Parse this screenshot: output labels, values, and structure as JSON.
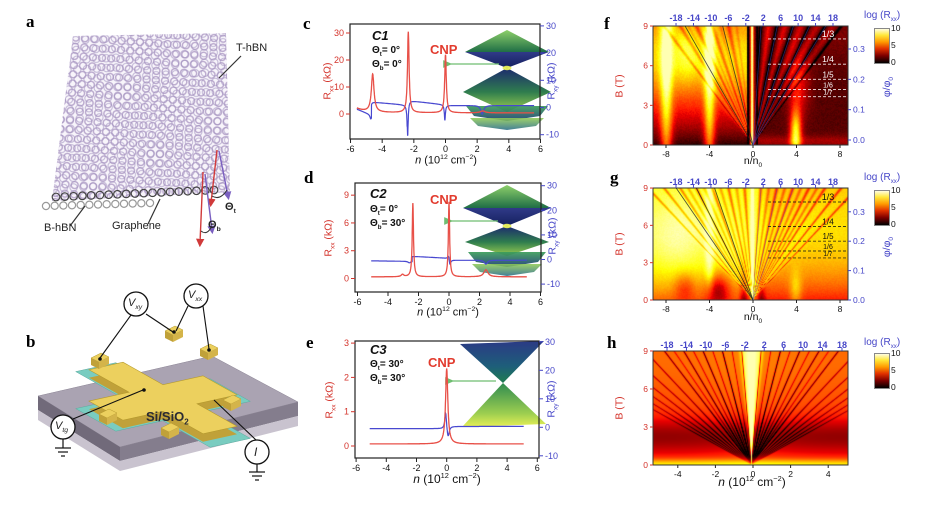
{
  "panels": {
    "a": "a",
    "b": "b",
    "c": "c",
    "d": "d",
    "e": "e",
    "f": "f",
    "g": "g",
    "h": "h"
  },
  "panel_a": {
    "t_hbn": "T-hBN",
    "b_hbn": "B-hBN",
    "graphene": "Graphene",
    "theta": "Θ",
    "theta_t_sub": "t",
    "theta_b_sub": "b"
  },
  "panel_b": {
    "v": "V",
    "vxy_sub": "xy",
    "vxx_sub": "xx",
    "vtg_sub": "tg",
    "current": "I",
    "substrate": "Si/SiO",
    "substrate_sub": "2"
  },
  "chart_data": [
    {
      "id": "c",
      "type": "line",
      "title": "C1",
      "annotations": {
        "theta": "Θ",
        "t_sub": "t",
        "t_val": "= 0°",
        "b_sub": "b",
        "b_val": "= 0°",
        "cnp": "CNP"
      },
      "xlabel": {
        "n": "n",
        "p1": " (10",
        "sup": "12",
        "p2": " cm",
        "sup2": "−2",
        "p3": ")"
      },
      "ylabel_left": {
        "base": "R",
        "sub": "xx",
        "rest": " (kΩ)"
      },
      "ylabel_right": {
        "base": "R",
        "sub": "xy",
        "rest": " (kΩ)"
      },
      "x_ticks": [
        -6,
        -4,
        -2,
        0,
        2,
        4,
        6
      ],
      "y_left_ticks": [
        0,
        10,
        20,
        30
      ],
      "y_right_ticks": [
        -10,
        0,
        10,
        20,
        30
      ],
      "colors": {
        "rxx": "#e85048",
        "rxy": "#4848d0"
      },
      "x_range": [
        -5.6,
        5.6
      ],
      "rxx": {
        "baseline": 0.4,
        "peaks": [
          {
            "x": -6.2,
            "h": 3.5,
            "w": 0.6
          },
          {
            "x": -4.6,
            "h": 14,
            "w": 0.1
          },
          {
            "x": -2.35,
            "h": 30,
            "w": 0.06
          },
          {
            "x": 0,
            "h": 21.5,
            "w": 0.06
          },
          {
            "x": 2.35,
            "h": 0.7,
            "w": 0.18
          }
        ]
      },
      "rxy": {
        "plateaus": [
          [
            -5.6,
            -4.68,
            -0.6,
            -2.8
          ],
          [
            -4.68,
            -2.42,
            2.0,
            0.9
          ],
          [
            -2.42,
            -0.06,
            2.6,
            1.0
          ],
          [
            -0.06,
            5.6,
            0.75,
            0.7
          ]
        ],
        "dips": [
          {
            "x": -4.72,
            "d": -1.5,
            "w": 0.06
          },
          {
            "x": -2.39,
            "d": -13,
            "w": 0.04
          },
          {
            "x": -0.04,
            "d": -5.5,
            "w": 0.04
          },
          {
            "x": 2.32,
            "d": -3.2,
            "w": 0.1
          }
        ]
      }
    },
    {
      "id": "d",
      "type": "line",
      "title": "C2",
      "annotations": {
        "theta": "Θ",
        "t_sub": "t",
        "t_val": "= 0°",
        "b_sub": "b",
        "b_val": "= 30°",
        "cnp": "CNP"
      },
      "xlabel": {
        "n": "n",
        "p1": " (10",
        "sup": "12",
        "p2": " cm",
        "sup2": "−2",
        "p3": ")"
      },
      "ylabel_left": {
        "base": "R",
        "sub": "xx",
        "rest": " (kΩ)"
      },
      "ylabel_right": {
        "base": "R",
        "sub": "xy",
        "rest": " (kΩ)"
      },
      "x_ticks": [
        -6,
        -4,
        -2,
        0,
        2,
        4,
        6
      ],
      "y_left_ticks": [
        0,
        3,
        6,
        9
      ],
      "y_right_ticks": [
        -10,
        0,
        10,
        20,
        30
      ],
      "colors": {
        "rxx": "#e85048",
        "rxy": "#4848d0"
      },
      "x_range": [
        -5.1,
        5.1
      ],
      "rxx": {
        "baseline": 0.18,
        "peaks": [
          {
            "x": -3.05,
            "h": 0.25,
            "w": 0.1
          },
          {
            "x": -2.37,
            "h": 8.0,
            "w": 0.05
          },
          {
            "x": 0,
            "h": 8.1,
            "w": 0.05
          },
          {
            "x": 2.42,
            "h": 0.75,
            "w": 0.16
          }
        ]
      },
      "rxy": {
        "plateaus": [
          [
            -5.1,
            -2.42,
            -0.55,
            -0.75
          ],
          [
            -2.42,
            -0.05,
            1.3,
            0.5
          ],
          [
            -0.05,
            5.1,
            -0.3,
            -0.3
          ]
        ],
        "dips": [
          {
            "x": -2.6,
            "d": -0.6,
            "w": 0.1
          },
          {
            "x": -0.02,
            "d": 2.2,
            "w": 0.05
          },
          {
            "x": 0.06,
            "d": -2.2,
            "w": 0.06
          },
          {
            "x": 2.42,
            "d": -1.6,
            "w": 0.12
          }
        ]
      }
    },
    {
      "id": "e",
      "type": "line",
      "title": "C3",
      "annotations": {
        "theta": "Θ",
        "t_sub": "t",
        "t_val": "= 30°",
        "b_sub": "b",
        "b_val": "= 30°",
        "cnp": "CNP"
      },
      "xlabel": {
        "n": "n",
        "p1": " (10",
        "sup": "12",
        "p2": " cm",
        "sup2": "−2",
        "p3": ")"
      },
      "ylabel_left": {
        "base": "R",
        "sub": "xx",
        "rest": " (kΩ)"
      },
      "ylabel_right": {
        "base": "R",
        "sub": "xy",
        "rest": " (kΩ)"
      },
      "x_ticks": [
        -6,
        -4,
        -2,
        0,
        2,
        4,
        6
      ],
      "y_left_ticks": [
        0,
        1,
        2,
        3
      ],
      "y_right_ticks": [
        -10,
        0,
        10,
        20,
        30
      ],
      "colors": {
        "rxx": "#e85048",
        "rxy": "#4848d0"
      },
      "x_range": [
        -5.1,
        5.1
      ],
      "rxx": {
        "baseline": 0.06,
        "peaks": [
          {
            "x": 0,
            "h": 2.2,
            "w": 0.09
          }
        ]
      },
      "rxy": {
        "plateaus": [
          [
            -5.1,
            -0.1,
            -0.45,
            -0.45
          ],
          [
            -0.1,
            0.1,
            -0.45,
            0.3
          ],
          [
            0.1,
            5.1,
            0.3,
            0.3
          ]
        ],
        "dips": [
          {
            "x": -0.07,
            "d": 6.3,
            "w": 0.07
          },
          {
            "x": 0.09,
            "d": -4.2,
            "w": 0.09
          }
        ]
      }
    },
    {
      "id": "f",
      "type": "heatmap",
      "xlabel": {
        "base": "n/n",
        "sub": "0"
      },
      "ylabel": "B (T)",
      "right_label": {
        "base": "φ/φ",
        "sub": "0"
      },
      "x_ticks": [
        -8,
        -4,
        0,
        4,
        8
      ],
      "top_ticks": [
        -18,
        -14,
        -10,
        -6,
        -2,
        2,
        6,
        10,
        14,
        18
      ],
      "y_ticks": [
        0,
        3,
        6,
        9
      ],
      "phi_ticks": [
        "0.0",
        "0.1",
        "0.2",
        "0.3"
      ],
      "fractions": [
        "1/3",
        "1/4",
        "1/5",
        "1/6",
        "1/7"
      ],
      "fraction_values": [
        0.3333,
        0.25,
        0.2,
        0.1667,
        0.1429
      ],
      "colorbar": {
        "p1": "log (R",
        "sub": "xx",
        "p2": ")",
        "ticks": [
          "10",
          "5",
          "0"
        ]
      }
    },
    {
      "id": "g",
      "type": "heatmap",
      "xlabel": {
        "base": "n/n",
        "sub": "0"
      },
      "ylabel": "B (T)",
      "right_label": {
        "base": "φ/φ",
        "sub": "0"
      },
      "x_ticks": [
        -8,
        -4,
        0,
        4,
        8
      ],
      "top_ticks": [
        -18,
        -14,
        -10,
        -6,
        -2,
        2,
        6,
        10,
        14,
        18
      ],
      "y_ticks": [
        0,
        3,
        6,
        9
      ],
      "phi_ticks": [
        "0.0",
        "0.1",
        "0.2",
        "0.3"
      ],
      "fractions": [
        "1/3",
        "1/4",
        "1/5",
        "1/6",
        "1/7"
      ],
      "fraction_values": [
        0.3333,
        0.25,
        0.2,
        0.1667,
        0.1429
      ],
      "colorbar": {
        "p1": "log (R",
        "sub": "xx",
        "p2": ")",
        "ticks": [
          "10",
          "5",
          "0"
        ]
      }
    },
    {
      "id": "h",
      "type": "heatmap",
      "xlabel": {
        "n": "n",
        "p1": " (10",
        "sup": "12",
        "p2": " cm",
        "sup2": "−2",
        "p3": ")"
      },
      "ylabel": "B (T)",
      "x_ticks": [
        -4,
        -2,
        0,
        2,
        4
      ],
      "top_ticks": [
        -18,
        -14,
        -10,
        -6,
        -2,
        2,
        6,
        10,
        14,
        18
      ],
      "y_ticks": [
        0,
        3,
        6,
        9
      ],
      "colorbar": {
        "p1": "log (R",
        "sub": "xx",
        "p2": ")",
        "ticks": [
          "10",
          "5",
          "0"
        ]
      }
    }
  ]
}
